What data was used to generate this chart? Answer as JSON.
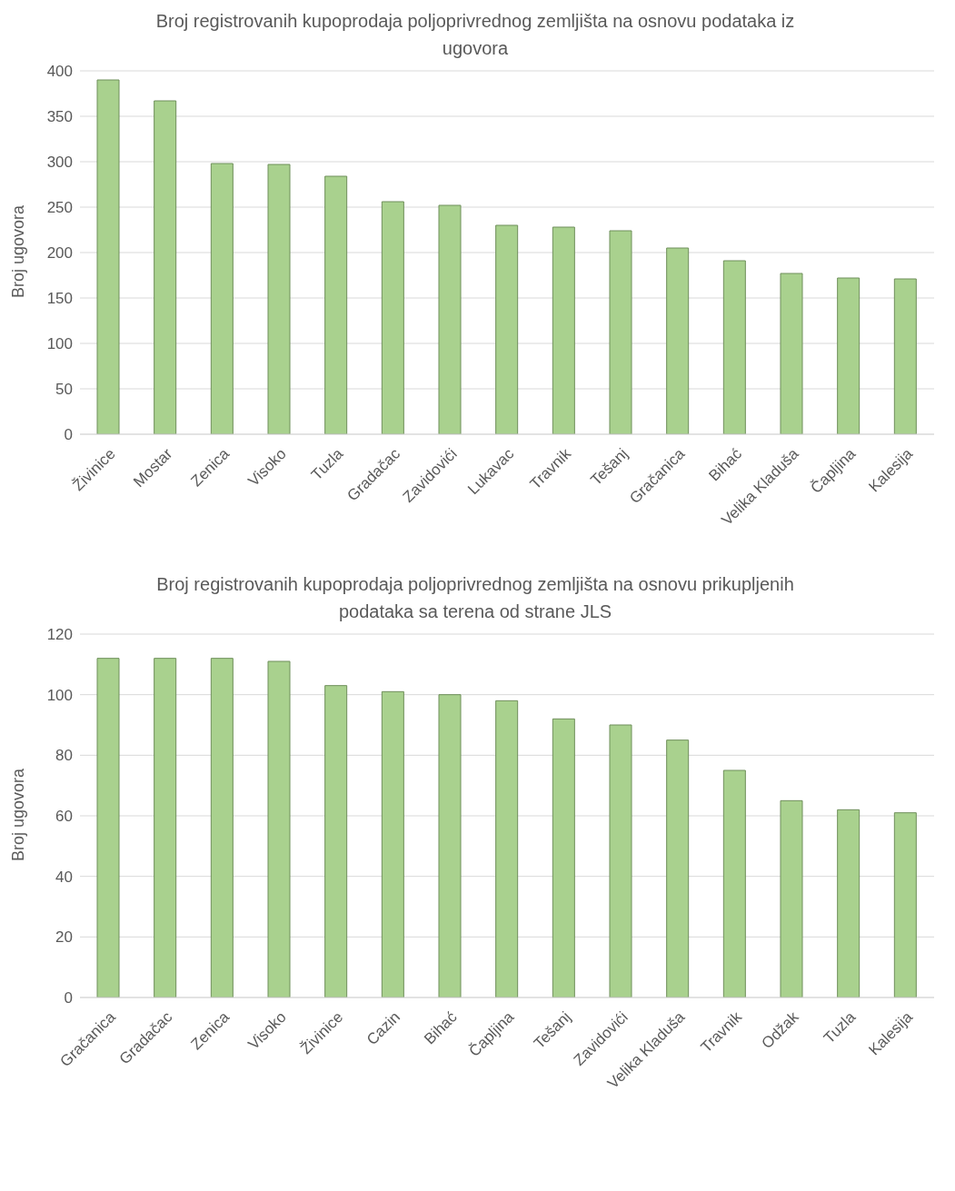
{
  "chart_data": [
    {
      "type": "bar",
      "title": "Broj registrovanih kupoprodaja poljoprivrednog zemljišta na osnovu podataka iz ugovora",
      "ylabel": "Broj ugovora",
      "categories": [
        "Živinice",
        "Mostar",
        "Zenica",
        "Visoko",
        "Tuzla",
        "Gradačac",
        "Zavidovići",
        "Lukavac",
        "Travnik",
        "Tešanj",
        "Gračanica",
        "Bihać",
        "Velika Kladuša",
        "Čapljina",
        "Kalesija"
      ],
      "values": [
        390,
        367,
        298,
        297,
        284,
        256,
        252,
        230,
        228,
        224,
        205,
        191,
        177,
        172,
        171
      ],
      "color": "#a9d18e",
      "ylim": [
        0,
        400
      ],
      "yticks": [
        0,
        50,
        100,
        150,
        200,
        250,
        300,
        350,
        400
      ],
      "grid": "y"
    },
    {
      "type": "bar",
      "title": "Broj registrovanih kupoprodaja poljoprivrednog zemljišta na osnovu prikupljenih podataka sa terena od strane JLS",
      "ylabel": "Broj ugovora",
      "categories": [
        "Gračanica",
        "Gradačac",
        "Zenica",
        "Visoko",
        "Živinice",
        "Cazin",
        "Bihać",
        "Čapljina",
        "Tešanj",
        "Zavidovići",
        "Velika Kladuša",
        "Travnik",
        "Odžak",
        "Tuzla",
        "Kalesija"
      ],
      "values": [
        112,
        112,
        112,
        111,
        103,
        101,
        100,
        98,
        92,
        90,
        85,
        75,
        65,
        62,
        61
      ],
      "color": "#a9d18e",
      "ylim": [
        0,
        120
      ],
      "yticks": [
        0,
        20,
        40,
        60,
        80,
        100,
        120
      ],
      "grid": "y"
    }
  ]
}
